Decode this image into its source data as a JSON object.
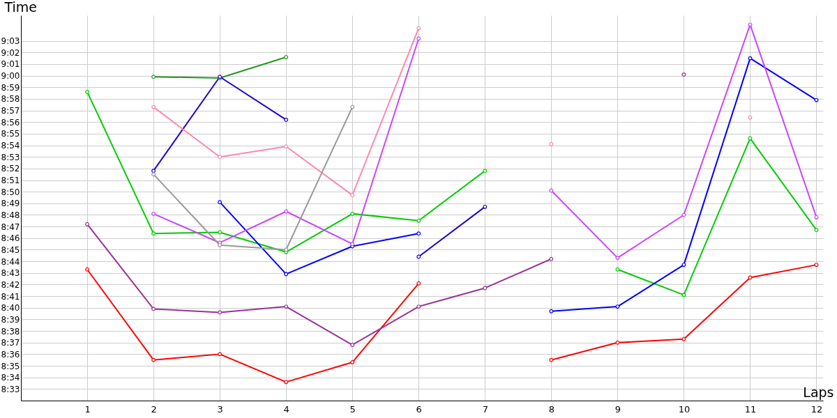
{
  "chart_data": {
    "type": "line",
    "xlabel": "Laps",
    "ylabel": "Time",
    "x": [
      1,
      2,
      3,
      4,
      5,
      6,
      7,
      8,
      9,
      10,
      11,
      12
    ],
    "xlim": [
      0,
      12.1
    ],
    "ylim": [
      512,
      545.2
    ],
    "xticks": [
      1,
      2,
      3,
      4,
      5,
      6,
      7,
      8,
      9,
      10,
      11,
      12
    ],
    "yticks": [
      {
        "value": 513,
        "label": "8:33"
      },
      {
        "value": 514,
        "label": "8:34"
      },
      {
        "value": 515,
        "label": "8:35"
      },
      {
        "value": 516,
        "label": "8:36"
      },
      {
        "value": 517,
        "label": "8:37"
      },
      {
        "value": 518,
        "label": "8:38"
      },
      {
        "value": 519,
        "label": "8:39"
      },
      {
        "value": 520,
        "label": "8:40"
      },
      {
        "value": 521,
        "label": "8:41"
      },
      {
        "value": 522,
        "label": "8:42"
      },
      {
        "value": 523,
        "label": "8:43"
      },
      {
        "value": 524,
        "label": "8:44"
      },
      {
        "value": 525,
        "label": "8:45"
      },
      {
        "value": 526,
        "label": "8:46"
      },
      {
        "value": 527,
        "label": "8:47"
      },
      {
        "value": 528,
        "label": "8:48"
      },
      {
        "value": 529,
        "label": "8:49"
      },
      {
        "value": 530,
        "label": "8:50"
      },
      {
        "value": 531,
        "label": "8:51"
      },
      {
        "value": 532,
        "label": "8:52"
      },
      {
        "value": 533,
        "label": "8:53"
      },
      {
        "value": 534,
        "label": "8:54"
      },
      {
        "value": 535,
        "label": "8:55"
      },
      {
        "value": 536,
        "label": "8:56"
      },
      {
        "value": 537,
        "label": "8:57"
      },
      {
        "value": 538,
        "label": "8:58"
      },
      {
        "value": 539,
        "label": "8:59"
      },
      {
        "value": 540,
        "label": "9:00"
      },
      {
        "value": 541,
        "label": "9:01"
      },
      {
        "value": 542,
        "label": "9:02"
      },
      {
        "value": 543,
        "label": "9:03"
      }
    ],
    "grid": true,
    "marker": "circle",
    "line_style": "solid",
    "series": [
      {
        "color": "#ff0000",
        "values": [
          523.3,
          515.5,
          516.0,
          513.6,
          515.3,
          522.1,
          null,
          515.5,
          517.0,
          517.3,
          522.6,
          523.7
        ]
      },
      {
        "color": "#993399",
        "values": [
          527.2,
          519.9,
          519.6,
          520.1,
          516.8,
          520.1,
          521.7,
          524.2,
          null,
          540.1,
          null,
          null
        ]
      },
      {
        "color": "#00cc00",
        "values": [
          538.6,
          526.4,
          526.5,
          524.8,
          528.1,
          527.5,
          531.8,
          null,
          523.3,
          521.1,
          534.6,
          526.7
        ]
      },
      {
        "color": "#229922",
        "values": [
          null,
          539.9,
          539.8,
          541.6,
          null,
          null,
          null,
          null,
          null,
          null,
          null,
          null
        ]
      },
      {
        "color": "#2200cc",
        "values": [
          null,
          531.8,
          539.9,
          536.2,
          null,
          524.4,
          528.7,
          null,
          null,
          null,
          null,
          null
        ]
      },
      {
        "color": "#0000ff",
        "values": [
          null,
          null,
          529.1,
          522.9,
          525.3,
          526.4,
          null,
          519.7,
          520.1,
          523.7,
          541.5,
          537.9
        ]
      },
      {
        "color": "#cc44ff",
        "values": [
          null,
          528.1,
          525.6,
          528.3,
          525.5,
          543.2,
          null,
          530.1,
          524.3,
          528.0,
          544.4,
          527.8
        ]
      },
      {
        "color": "#ff88aa",
        "values": [
          null,
          537.3,
          533.0,
          533.9,
          529.7,
          544.1,
          null,
          534.1,
          null,
          null,
          536.4,
          null
        ]
      },
      {
        "color": "#999999",
        "values": [
          null,
          531.5,
          525.4,
          525.0,
          537.3,
          null,
          null,
          null,
          null,
          null,
          null,
          null
        ]
      }
    ]
  }
}
